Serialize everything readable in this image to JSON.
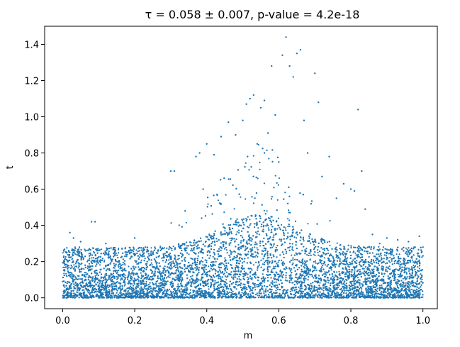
{
  "chart_data": {
    "type": "scatter",
    "title": "τ = 0.058 ± 0.007, p-value = 4.2e-18",
    "xlabel": "m",
    "ylabel": "t",
    "xlim": [
      -0.05,
      1.04
    ],
    "ylim": [
      -0.06,
      1.5
    ],
    "x_ticks": [
      "0.0",
      "0.2",
      "0.4",
      "0.6",
      "0.8",
      "1.0"
    ],
    "y_ticks": [
      "0.0",
      "0.2",
      "0.4",
      "0.6",
      "0.8",
      "1.0",
      "1.2",
      "1.4"
    ],
    "grid": false,
    "marker_color": "#1f77b4",
    "points": [
      {
        "x": 0.02,
        "y": 0.36
      },
      {
        "x": 0.03,
        "y": 0.33
      },
      {
        "x": 0.05,
        "y": 0.31
      },
      {
        "x": 0.08,
        "y": 0.42
      },
      {
        "x": 0.09,
        "y": 0.42
      },
      {
        "x": 0.12,
        "y": 0.3
      },
      {
        "x": 0.2,
        "y": 0.33
      },
      {
        "x": 0.23,
        "y": 0.28
      },
      {
        "x": 0.3,
        "y": 0.7
      },
      {
        "x": 0.31,
        "y": 0.7
      },
      {
        "x": 0.34,
        "y": 0.48
      },
      {
        "x": 0.37,
        "y": 0.78
      },
      {
        "x": 0.38,
        "y": 0.8
      },
      {
        "x": 0.39,
        "y": 0.6
      },
      {
        "x": 0.4,
        "y": 0.85
      },
      {
        "x": 0.42,
        "y": 0.79
      },
      {
        "x": 0.44,
        "y": 0.89
      },
      {
        "x": 0.46,
        "y": 0.97
      },
      {
        "x": 0.48,
        "y": 0.9
      },
      {
        "x": 0.5,
        "y": 0.98
      },
      {
        "x": 0.51,
        "y": 1.07
      },
      {
        "x": 0.52,
        "y": 1.1
      },
      {
        "x": 0.53,
        "y": 1.12
      },
      {
        "x": 0.54,
        "y": 0.85
      },
      {
        "x": 0.55,
        "y": 1.05
      },
      {
        "x": 0.56,
        "y": 1.09
      },
      {
        "x": 0.57,
        "y": 0.91
      },
      {
        "x": 0.58,
        "y": 1.28
      },
      {
        "x": 0.59,
        "y": 1.01
      },
      {
        "x": 0.6,
        "y": 0.75
      },
      {
        "x": 0.61,
        "y": 1.34
      },
      {
        "x": 0.62,
        "y": 1.44
      },
      {
        "x": 0.63,
        "y": 1.28
      },
      {
        "x": 0.64,
        "y": 1.22
      },
      {
        "x": 0.65,
        "y": 1.35
      },
      {
        "x": 0.66,
        "y": 1.37
      },
      {
        "x": 0.67,
        "y": 0.98
      },
      {
        "x": 0.68,
        "y": 0.8
      },
      {
        "x": 0.7,
        "y": 1.24
      },
      {
        "x": 0.71,
        "y": 1.08
      },
      {
        "x": 0.72,
        "y": 0.67
      },
      {
        "x": 0.74,
        "y": 0.78
      },
      {
        "x": 0.76,
        "y": 0.55
      },
      {
        "x": 0.78,
        "y": 0.63
      },
      {
        "x": 0.8,
        "y": 0.6
      },
      {
        "x": 0.81,
        "y": 0.59
      },
      {
        "x": 0.82,
        "y": 1.04
      },
      {
        "x": 0.83,
        "y": 0.7
      },
      {
        "x": 0.84,
        "y": 0.49
      },
      {
        "x": 0.86,
        "y": 0.35
      },
      {
        "x": 0.88,
        "y": 0.3
      },
      {
        "x": 0.9,
        "y": 0.33
      },
      {
        "x": 0.93,
        "y": 0.32
      },
      {
        "x": 0.96,
        "y": 0.31
      },
      {
        "x": 0.99,
        "y": 0.34
      },
      {
        "x": 1.0,
        "y": 0.28
      }
    ],
    "dense_band": {
      "approx_point_count": 9000,
      "x_range": [
        0.0,
        1.0
      ],
      "y_range": [
        0.0,
        0.4
      ]
    }
  }
}
